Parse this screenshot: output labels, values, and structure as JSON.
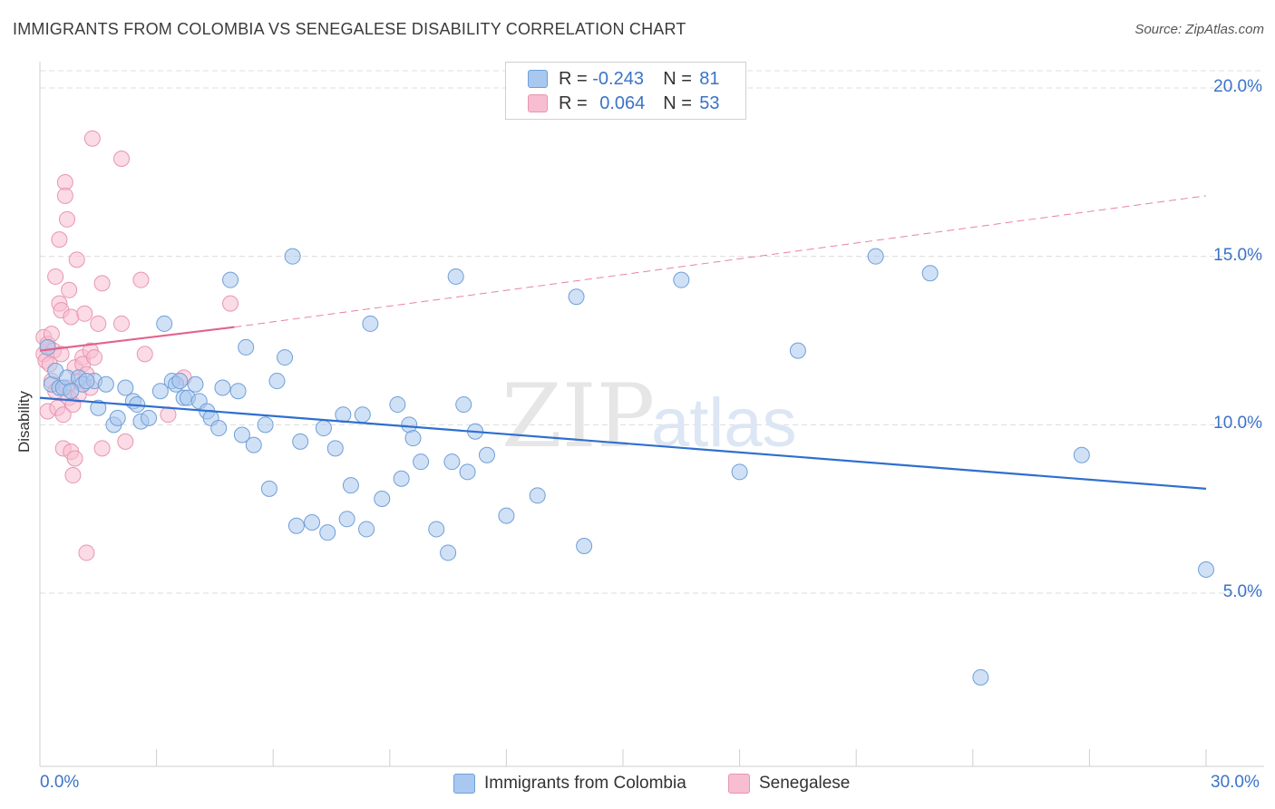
{
  "title": "IMMIGRANTS FROM COLOMBIA VS SENEGALESE DISABILITY CORRELATION CHART",
  "source": "Source: ZipAtlas.com",
  "watermark": {
    "zip": "ZIP",
    "atlas": "atlas"
  },
  "legend": {
    "rows": [
      {
        "r_label": "R =",
        "r_value": "-0.243",
        "n_label": "N =",
        "n_value": "81"
      },
      {
        "r_label": "R =",
        "r_value": "0.064",
        "n_label": "N =",
        "n_value": "53"
      }
    ]
  },
  "colors": {
    "blue_fill": "#a9c8ef",
    "blue_stroke": "#6f9fd8",
    "blue_line": "#2f6fce",
    "pink_fill": "#f7bdd0",
    "pink_stroke": "#e895b2",
    "pink_line": "#e2638f",
    "grid": "#dcdcdc",
    "tick_text": "#3a73c8"
  },
  "chart_data": {
    "type": "scatter",
    "title": "IMMIGRANTS FROM COLOMBIA VS SENEGALESE DISABILITY CORRELATION CHART",
    "xlabel": "",
    "ylabel": "Disability",
    "xlim": [
      0,
      30
    ],
    "ylim": [
      0,
      21
    ],
    "x_tick_labels": [
      "0.0%",
      "30.0%"
    ],
    "y_ticks": [
      5,
      10,
      15,
      20
    ],
    "y_tick_labels": [
      "5.0%",
      "10.0%",
      "15.0%",
      "20.0%"
    ],
    "grid": true,
    "series": [
      {
        "name": "Immigrants from Colombia",
        "color": "blue",
        "R": -0.243,
        "N": 81,
        "trend": {
          "x": [
            0.0,
            30.0
          ],
          "y": [
            10.8,
            8.1
          ]
        },
        "points": [
          [
            0.2,
            12.3
          ],
          [
            0.3,
            11.2
          ],
          [
            0.4,
            11.6
          ],
          [
            0.5,
            11.1
          ],
          [
            0.6,
            11.1
          ],
          [
            0.7,
            11.4
          ],
          [
            1.0,
            11.4
          ],
          [
            1.1,
            11.2
          ],
          [
            1.4,
            11.3
          ],
          [
            1.5,
            10.5
          ],
          [
            1.7,
            11.2
          ],
          [
            1.9,
            10.0
          ],
          [
            2.0,
            10.2
          ],
          [
            2.2,
            11.1
          ],
          [
            2.4,
            10.7
          ],
          [
            2.6,
            10.1
          ],
          [
            2.8,
            10.2
          ],
          [
            3.1,
            11.0
          ],
          [
            3.2,
            13.0
          ],
          [
            3.4,
            11.3
          ],
          [
            3.5,
            11.2
          ],
          [
            3.7,
            10.8
          ],
          [
            3.8,
            10.8
          ],
          [
            4.0,
            11.2
          ],
          [
            4.1,
            10.7
          ],
          [
            4.3,
            10.4
          ],
          [
            4.4,
            10.2
          ],
          [
            4.6,
            9.9
          ],
          [
            4.7,
            11.1
          ],
          [
            4.9,
            14.3
          ],
          [
            5.1,
            11.0
          ],
          [
            5.2,
            9.7
          ],
          [
            5.3,
            12.3
          ],
          [
            5.5,
            9.4
          ],
          [
            5.8,
            10.0
          ],
          [
            5.9,
            8.1
          ],
          [
            6.1,
            11.3
          ],
          [
            6.3,
            12.0
          ],
          [
            6.5,
            15.0
          ],
          [
            6.6,
            7.0
          ],
          [
            6.7,
            9.5
          ],
          [
            7.0,
            7.1
          ],
          [
            7.3,
            9.9
          ],
          [
            7.4,
            6.8
          ],
          [
            7.6,
            9.3
          ],
          [
            7.8,
            10.3
          ],
          [
            7.9,
            7.2
          ],
          [
            8.0,
            8.2
          ],
          [
            8.3,
            10.3
          ],
          [
            8.4,
            6.9
          ],
          [
            8.5,
            13.0
          ],
          [
            8.8,
            7.8
          ],
          [
            9.2,
            10.6
          ],
          [
            9.3,
            8.4
          ],
          [
            9.5,
            10.0
          ],
          [
            9.6,
            9.6
          ],
          [
            9.8,
            8.9
          ],
          [
            10.2,
            6.9
          ],
          [
            10.5,
            6.2
          ],
          [
            10.6,
            8.9
          ],
          [
            10.7,
            14.4
          ],
          [
            10.9,
            10.6
          ],
          [
            11.0,
            8.6
          ],
          [
            11.2,
            9.8
          ],
          [
            11.5,
            9.1
          ],
          [
            12.0,
            7.3
          ],
          [
            12.8,
            7.9
          ],
          [
            13.8,
            13.8
          ],
          [
            14.0,
            6.4
          ],
          [
            16.5,
            14.3
          ],
          [
            18.0,
            8.6
          ],
          [
            19.5,
            12.2
          ],
          [
            21.5,
            15.0
          ],
          [
            22.9,
            14.5
          ],
          [
            24.2,
            2.5
          ],
          [
            26.8,
            9.1
          ],
          [
            30.0,
            5.7
          ],
          [
            0.8,
            11.0
          ],
          [
            1.2,
            11.3
          ],
          [
            2.5,
            10.6
          ],
          [
            3.6,
            11.3
          ]
        ]
      },
      {
        "name": "Senegalese",
        "color": "pink",
        "R": 0.064,
        "N": 53,
        "trend_solid": {
          "x": [
            0.0,
            5.0
          ],
          "y": [
            12.2,
            12.9
          ]
        },
        "trend_dashed": {
          "x": [
            5.0,
            30.0
          ],
          "y": [
            12.9,
            16.8
          ]
        },
        "points": [
          [
            0.1,
            12.6
          ],
          [
            0.1,
            12.1
          ],
          [
            0.15,
            11.9
          ],
          [
            0.2,
            12.4
          ],
          [
            0.2,
            10.4
          ],
          [
            0.3,
            12.7
          ],
          [
            0.3,
            11.3
          ],
          [
            0.35,
            12.2
          ],
          [
            0.4,
            14.4
          ],
          [
            0.4,
            11.0
          ],
          [
            0.45,
            10.5
          ],
          [
            0.5,
            15.5
          ],
          [
            0.5,
            13.6
          ],
          [
            0.55,
            13.4
          ],
          [
            0.6,
            10.3
          ],
          [
            0.6,
            9.3
          ],
          [
            0.65,
            17.2
          ],
          [
            0.65,
            16.8
          ],
          [
            0.7,
            16.1
          ],
          [
            0.7,
            11.1
          ],
          [
            0.75,
            14.0
          ],
          [
            0.75,
            10.8
          ],
          [
            0.8,
            13.2
          ],
          [
            0.8,
            9.2
          ],
          [
            0.85,
            10.6
          ],
          [
            0.85,
            8.5
          ],
          [
            0.9,
            11.7
          ],
          [
            0.9,
            9.0
          ],
          [
            0.95,
            14.9
          ],
          [
            1.0,
            11.3
          ],
          [
            1.0,
            10.9
          ],
          [
            1.1,
            12.0
          ],
          [
            1.1,
            11.8
          ],
          [
            1.15,
            13.3
          ],
          [
            1.2,
            11.5
          ],
          [
            1.2,
            6.2
          ],
          [
            1.3,
            12.2
          ],
          [
            1.3,
            11.1
          ],
          [
            1.35,
            18.5
          ],
          [
            1.4,
            12.0
          ],
          [
            1.5,
            13.0
          ],
          [
            1.6,
            14.2
          ],
          [
            1.6,
            9.3
          ],
          [
            2.1,
            17.9
          ],
          [
            2.1,
            13.0
          ],
          [
            2.2,
            9.5
          ],
          [
            2.6,
            14.3
          ],
          [
            2.7,
            12.1
          ],
          [
            3.3,
            10.3
          ],
          [
            3.7,
            11.4
          ],
          [
            4.9,
            13.6
          ],
          [
            0.25,
            11.8
          ],
          [
            0.55,
            12.1
          ]
        ]
      }
    ]
  },
  "bottom_legend": [
    "Immigrants from Colombia",
    "Senegalese"
  ]
}
